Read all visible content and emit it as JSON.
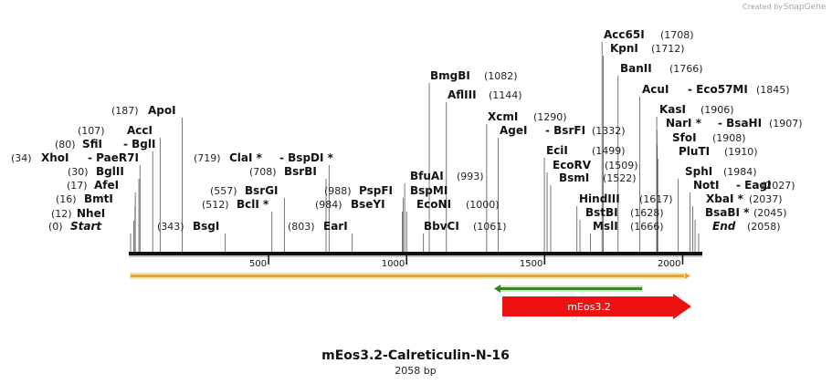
{
  "credit": {
    "prefix": "Created by",
    "brand": "SnapGene"
  },
  "title": "mEos3.2-Calreticulin-N-16",
  "subtitle": "2058 bp",
  "seq_length": 2058,
  "ruler_ticks": [
    {
      "pos": 500,
      "label": "500"
    },
    {
      "pos": 1000,
      "label": "1000"
    },
    {
      "pos": 1500,
      "label": "1500"
    },
    {
      "pos": 2000,
      "label": "2000"
    }
  ],
  "enzymes": [
    {
      "pos": 0,
      "pos_label": "(0)",
      "name": "Start",
      "italic": true
    },
    {
      "pos": 12,
      "pos_label": "(12)",
      "name": "NheI"
    },
    {
      "pos": 16,
      "pos_label": "(16)",
      "name": "BmtI"
    },
    {
      "pos": 17,
      "pos_label": "(17)",
      "name": "AfeI"
    },
    {
      "pos": 30,
      "pos_label": "(30)",
      "name": "BglII"
    },
    {
      "pos": 34,
      "pos_label": "(34)",
      "name": "XhoI",
      "alt": "PaeR7I"
    },
    {
      "pos": 80,
      "pos_label": "(80)",
      "name": "SfiI",
      "alt": "BglI"
    },
    {
      "pos": 107,
      "pos_label": "(107)",
      "name": "AccI"
    },
    {
      "pos": 187,
      "pos_label": "(187)",
      "name": "ApoI"
    },
    {
      "pos": 343,
      "pos_label": "(343)",
      "name": "BsgI"
    },
    {
      "pos": 512,
      "pos_label": "(512)",
      "name": "BclI *"
    },
    {
      "pos": 557,
      "pos_label": "(557)",
      "name": "BsrGI"
    },
    {
      "pos": 708,
      "pos_label": "(708)",
      "name": "BsrBI"
    },
    {
      "pos": 719,
      "pos_label": "(719)",
      "name": "ClaI *",
      "alt": "BspDI *"
    },
    {
      "pos": 803,
      "pos_label": "(803)",
      "name": "EarI"
    },
    {
      "pos": 984,
      "pos_label": "(984)",
      "name": "BseYI"
    },
    {
      "pos": 988,
      "pos_label": "(988)",
      "name": "PspFI"
    },
    {
      "pos": 993,
      "pos_label": "(993)",
      "name": "BfuAI",
      "alt2": "BspMI"
    },
    {
      "pos": 1000,
      "pos_label": "(1000)",
      "name": "EcoNI"
    },
    {
      "pos": 1061,
      "pos_label": "(1061)",
      "name": "BbvCI"
    },
    {
      "pos": 1082,
      "pos_label": "(1082)",
      "name": "BmgBI"
    },
    {
      "pos": 1144,
      "pos_label": "(1144)",
      "name": "AflIII"
    },
    {
      "pos": 1290,
      "pos_label": "(1290)",
      "name": "XcmI"
    },
    {
      "pos": 1332,
      "pos_label": "(1332)",
      "name": "AgeI",
      "alt": "BsrFI"
    },
    {
      "pos": 1499,
      "pos_label": "(1499)",
      "name": "EciI"
    },
    {
      "pos": 1509,
      "pos_label": "(1509)",
      "name": "EcoRV"
    },
    {
      "pos": 1522,
      "pos_label": "(1522)",
      "name": "BsmI"
    },
    {
      "pos": 1617,
      "pos_label": "(1617)",
      "name": "HindIII"
    },
    {
      "pos": 1628,
      "pos_label": "(1628)",
      "name": "BstBI"
    },
    {
      "pos": 1666,
      "pos_label": "(1666)",
      "name": "MslI"
    },
    {
      "pos": 1708,
      "pos_label": "(1708)",
      "name": "Acc65I"
    },
    {
      "pos": 1712,
      "pos_label": "(1712)",
      "name": "KpnI"
    },
    {
      "pos": 1766,
      "pos_label": "(1766)",
      "name": "BanII"
    },
    {
      "pos": 1845,
      "pos_label": "(1845)",
      "name": "AcuI",
      "alt": "Eco57MI"
    },
    {
      "pos": 1906,
      "pos_label": "(1906)",
      "name": "KasI"
    },
    {
      "pos": 1907,
      "pos_label": "(1907)",
      "name": "NarI *",
      "alt": "BsaHI"
    },
    {
      "pos": 1908,
      "pos_label": "(1908)",
      "name": "SfoI"
    },
    {
      "pos": 1910,
      "pos_label": "(1910)",
      "name": "PluTI"
    },
    {
      "pos": 1984,
      "pos_label": "(1984)",
      "name": "SphI"
    },
    {
      "pos": 2027,
      "pos_label": "(2027)",
      "name": "NotI",
      "alt": "EagI"
    },
    {
      "pos": 2037,
      "pos_label": "(2037)",
      "name": "XbaI *"
    },
    {
      "pos": 2045,
      "pos_label": "(2045)",
      "name": "BsaBI *"
    },
    {
      "pos": 2058,
      "pos_label": "(2058)",
      "name": "End",
      "italic": true
    }
  ],
  "features": [
    {
      "label": "mEos3.2",
      "color": "#ee1111"
    }
  ],
  "colors": {
    "backbone": "#111111",
    "orf_orange_fill": "#f0a030",
    "orf_orange_border": "#f5e7a0",
    "orf_green_fill": "#2e8b1e",
    "orf_green_border": "#c8f0b0",
    "feature_red": "#ee1111",
    "credit_gray": "#99a0a8"
  }
}
